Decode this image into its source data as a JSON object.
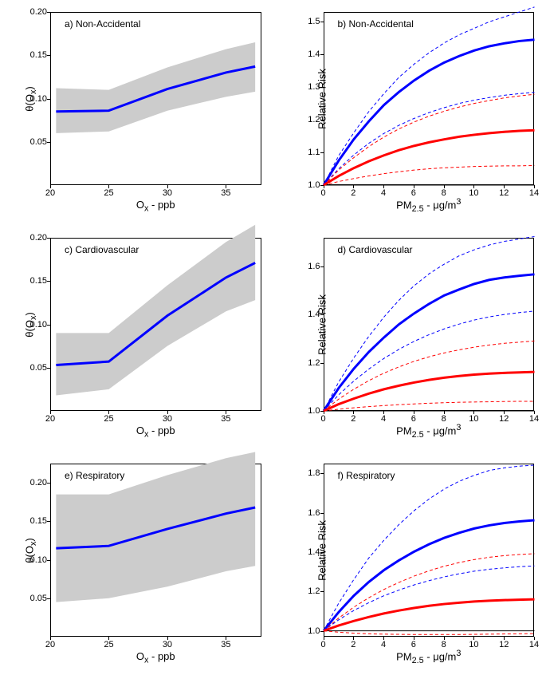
{
  "colors": {
    "band": "#cccccc",
    "blue": "#0000ff",
    "red": "#ff0000",
    "axis": "#000000",
    "refline": "#000000"
  },
  "panels": [
    {
      "id": "a",
      "label": "a) Non-Accidental",
      "type": "line-band",
      "x_axis": {
        "label": "Oₓ - ppb",
        "min": 20,
        "max": 38,
        "ticks": [
          20,
          25,
          30,
          35
        ]
      },
      "y_axis": {
        "label": "θ(Oₓ)",
        "min": 0,
        "max": 0.2,
        "ticks": [
          0.05,
          0.1,
          0.15,
          0.2
        ]
      },
      "band": {
        "x": [
          20.5,
          25,
          30,
          35,
          37.5
        ],
        "lo": [
          0.06,
          0.062,
          0.086,
          0.102,
          0.108
        ],
        "hi": [
          0.112,
          0.11,
          0.136,
          0.157,
          0.165
        ]
      },
      "line": {
        "x": [
          20.5,
          25,
          30,
          35,
          37.5
        ],
        "y": [
          0.085,
          0.086,
          0.111,
          0.13,
          0.137
        ],
        "color": "blue",
        "width": 3
      }
    },
    {
      "id": "b",
      "label": "b) Non-Accidental",
      "type": "rr",
      "x_axis": {
        "label": "PM₂.₅ - μg/m³",
        "min": 0,
        "max": 14,
        "ticks": [
          0,
          2,
          4,
          6,
          8,
          10,
          12,
          14
        ]
      },
      "y_axis": {
        "label": "Relative Risk",
        "min": 1.0,
        "max": 1.53,
        "ticks": [
          1.0,
          1.1,
          1.2,
          1.3,
          1.4,
          1.5
        ]
      },
      "ref": 1.0,
      "series": [
        {
          "x": [
            0,
            1,
            2,
            3,
            4,
            5,
            6,
            7,
            8,
            9,
            10,
            11,
            12,
            13,
            14
          ],
          "y": [
            1.0,
            1.09,
            1.16,
            1.225,
            1.28,
            1.33,
            1.37,
            1.405,
            1.435,
            1.46,
            1.48,
            1.5,
            1.515,
            1.53,
            1.545
          ],
          "color": "blue",
          "width": 1,
          "dash": "4,3"
        },
        {
          "x": [
            0,
            1,
            2,
            3,
            4,
            5,
            6,
            7,
            8,
            9,
            10,
            11,
            12,
            13,
            14
          ],
          "y": [
            1.0,
            1.075,
            1.14,
            1.195,
            1.245,
            1.285,
            1.32,
            1.35,
            1.375,
            1.395,
            1.412,
            1.425,
            1.434,
            1.441,
            1.445
          ],
          "color": "blue",
          "width": 3
        },
        {
          "x": [
            0,
            1,
            2,
            3,
            4,
            5,
            6,
            7,
            8,
            9,
            10,
            11,
            12,
            13,
            14
          ],
          "y": [
            1.0,
            1.05,
            1.092,
            1.128,
            1.158,
            1.183,
            1.204,
            1.222,
            1.237,
            1.25,
            1.26,
            1.268,
            1.275,
            1.28,
            1.284
          ],
          "color": "blue",
          "width": 1,
          "dash": "4,3"
        },
        {
          "x": [
            0,
            1,
            2,
            3,
            4,
            5,
            6,
            7,
            8,
            9,
            10,
            11,
            12,
            13,
            14
          ],
          "y": [
            1.0,
            1.046,
            1.084,
            1.118,
            1.147,
            1.172,
            1.193,
            1.211,
            1.226,
            1.239,
            1.25,
            1.259,
            1.267,
            1.273,
            1.278
          ],
          "color": "red",
          "width": 1,
          "dash": "4,3"
        },
        {
          "x": [
            0,
            1,
            2,
            3,
            4,
            5,
            6,
            7,
            8,
            9,
            10,
            11,
            12,
            13,
            14
          ],
          "y": [
            1.0,
            1.028,
            1.052,
            1.073,
            1.091,
            1.107,
            1.12,
            1.131,
            1.14,
            1.148,
            1.154,
            1.159,
            1.163,
            1.166,
            1.168
          ],
          "color": "red",
          "width": 3
        },
        {
          "x": [
            0,
            1,
            2,
            3,
            4,
            5,
            6,
            7,
            8,
            9,
            10,
            11,
            12,
            13,
            14
          ],
          "y": [
            1.0,
            1.011,
            1.02,
            1.028,
            1.035,
            1.041,
            1.046,
            1.05,
            1.053,
            1.055,
            1.057,
            1.058,
            1.059,
            1.059,
            1.06
          ],
          "color": "red",
          "width": 1,
          "dash": "4,3"
        }
      ]
    },
    {
      "id": "c",
      "label": "c) Cardiovascular",
      "type": "line-band",
      "x_axis": {
        "label": "Oₓ - ppb",
        "min": 20,
        "max": 38,
        "ticks": [
          20,
          25,
          30,
          35
        ]
      },
      "y_axis": {
        "label": "θ(Oₓ)",
        "min": 0,
        "max": 0.2,
        "ticks": [
          0.05,
          0.1,
          0.15,
          0.2
        ]
      },
      "band": {
        "x": [
          20.5,
          25,
          30,
          35,
          37.5
        ],
        "lo": [
          0.018,
          0.025,
          0.075,
          0.115,
          0.128
        ],
        "hi": [
          0.09,
          0.09,
          0.145,
          0.195,
          0.215
        ]
      },
      "line": {
        "x": [
          20.5,
          25,
          30,
          35,
          37.5
        ],
        "y": [
          0.053,
          0.057,
          0.11,
          0.154,
          0.171
        ],
        "color": "blue",
        "width": 3
      }
    },
    {
      "id": "d",
      "label": "d) Cardiovascular",
      "type": "rr",
      "x_axis": {
        "label": "PM₂.₅ - μg/m³",
        "min": 0,
        "max": 14,
        "ticks": [
          0,
          2,
          4,
          6,
          8,
          10,
          12,
          14
        ]
      },
      "y_axis": {
        "label": "Relative Risk",
        "min": 1.0,
        "max": 1.72,
        "ticks": [
          1.0,
          1.2,
          1.4,
          1.6
        ]
      },
      "ref": 1.0,
      "series": [
        {
          "x": [
            0,
            1,
            2,
            3,
            4,
            5,
            6,
            7,
            8,
            9,
            10,
            11,
            12,
            13,
            14
          ],
          "y": [
            1.0,
            1.12,
            1.22,
            1.31,
            1.39,
            1.46,
            1.52,
            1.57,
            1.61,
            1.645,
            1.67,
            1.69,
            1.705,
            1.715,
            1.725
          ],
          "color": "blue",
          "width": 1,
          "dash": "4,3"
        },
        {
          "x": [
            0,
            1,
            2,
            3,
            4,
            5,
            6,
            7,
            8,
            9,
            10,
            11,
            12,
            13,
            14
          ],
          "y": [
            1.0,
            1.095,
            1.175,
            1.245,
            1.305,
            1.36,
            1.405,
            1.445,
            1.48,
            1.505,
            1.528,
            1.545,
            1.555,
            1.562,
            1.568
          ],
          "color": "blue",
          "width": 3
        },
        {
          "x": [
            0,
            1,
            2,
            3,
            4,
            5,
            6,
            7,
            8,
            9,
            10,
            11,
            12,
            13,
            14
          ],
          "y": [
            1.0,
            1.067,
            1.124,
            1.174,
            1.218,
            1.256,
            1.289,
            1.317,
            1.341,
            1.361,
            1.378,
            1.391,
            1.401,
            1.409,
            1.415
          ],
          "color": "blue",
          "width": 1,
          "dash": "4,3"
        },
        {
          "x": [
            0,
            1,
            2,
            3,
            4,
            5,
            6,
            7,
            8,
            9,
            10,
            11,
            12,
            13,
            14
          ],
          "y": [
            1.0,
            1.049,
            1.09,
            1.126,
            1.157,
            1.183,
            1.206,
            1.225,
            1.241,
            1.254,
            1.265,
            1.274,
            1.281,
            1.286,
            1.291
          ],
          "color": "red",
          "width": 1,
          "dash": "4,3"
        },
        {
          "x": [
            0,
            1,
            2,
            3,
            4,
            5,
            6,
            7,
            8,
            9,
            10,
            11,
            12,
            13,
            14
          ],
          "y": [
            1.0,
            1.028,
            1.051,
            1.072,
            1.09,
            1.105,
            1.118,
            1.129,
            1.138,
            1.145,
            1.151,
            1.155,
            1.158,
            1.16,
            1.162
          ],
          "color": "red",
          "width": 3
        },
        {
          "x": [
            0,
            1,
            2,
            3,
            4,
            5,
            6,
            7,
            8,
            9,
            10,
            11,
            12,
            13,
            14
          ],
          "y": [
            1.0,
            1.007,
            1.013,
            1.018,
            1.022,
            1.026,
            1.029,
            1.032,
            1.034,
            1.036,
            1.037,
            1.038,
            1.039,
            1.04,
            1.04
          ],
          "color": "red",
          "width": 1,
          "dash": "4,3"
        }
      ]
    },
    {
      "id": "e",
      "label": "e) Respiratory",
      "type": "line-band",
      "x_axis": {
        "label": "Oₓ - ppb",
        "min": 20,
        "max": 38,
        "ticks": [
          20,
          25,
          30,
          35
        ]
      },
      "y_axis": {
        "label": "θ(Oₓ)",
        "min": 0,
        "max": 0.225,
        "ticks": [
          0.05,
          0.1,
          0.15,
          0.2
        ]
      },
      "band": {
        "x": [
          20.5,
          25,
          30,
          35,
          37.5
        ],
        "lo": [
          0.045,
          0.05,
          0.065,
          0.085,
          0.092
        ],
        "hi": [
          0.185,
          0.185,
          0.21,
          0.232,
          0.24
        ]
      },
      "line": {
        "x": [
          20.5,
          25,
          30,
          35,
          37.5
        ],
        "y": [
          0.115,
          0.118,
          0.14,
          0.16,
          0.168
        ],
        "color": "blue",
        "width": 3
      }
    },
    {
      "id": "f",
      "label": "f) Respiratory",
      "type": "rr",
      "x_axis": {
        "label": "PM₂.₅ - μg/m³",
        "min": 0,
        "max": 14,
        "ticks": [
          0,
          2,
          4,
          6,
          8,
          10,
          12,
          14
        ]
      },
      "y_axis": {
        "label": "Relative Risk",
        "min": 0.97,
        "max": 1.85,
        "ticks": [
          1.0,
          1.2,
          1.4,
          1.6,
          1.8
        ]
      },
      "ref": 1.0,
      "series": [
        {
          "x": [
            0,
            1,
            2,
            3,
            4,
            5,
            6,
            7,
            8,
            9,
            10,
            11,
            12,
            13,
            14
          ],
          "y": [
            1.0,
            1.14,
            1.26,
            1.37,
            1.46,
            1.54,
            1.61,
            1.67,
            1.72,
            1.76,
            1.79,
            1.815,
            1.828,
            1.837,
            1.842
          ],
          "color": "blue",
          "width": 1,
          "dash": "4,3"
        },
        {
          "x": [
            0,
            1,
            2,
            3,
            4,
            5,
            6,
            7,
            8,
            9,
            10,
            11,
            12,
            13,
            14
          ],
          "y": [
            1.0,
            1.095,
            1.178,
            1.248,
            1.308,
            1.358,
            1.402,
            1.44,
            1.472,
            1.498,
            1.52,
            1.536,
            1.548,
            1.556,
            1.562
          ],
          "color": "blue",
          "width": 3
        },
        {
          "x": [
            0,
            1,
            2,
            3,
            4,
            5,
            6,
            7,
            8,
            9,
            10,
            11,
            12,
            13,
            14
          ],
          "y": [
            1.0,
            1.056,
            1.103,
            1.143,
            1.178,
            1.207,
            1.233,
            1.255,
            1.274,
            1.29,
            1.303,
            1.313,
            1.32,
            1.326,
            1.33
          ],
          "color": "blue",
          "width": 1,
          "dash": "4,3"
        },
        {
          "x": [
            0,
            1,
            2,
            3,
            4,
            5,
            6,
            7,
            8,
            9,
            10,
            11,
            12,
            13,
            14
          ],
          "y": [
            1.0,
            1.065,
            1.12,
            1.168,
            1.21,
            1.246,
            1.278,
            1.305,
            1.328,
            1.347,
            1.362,
            1.374,
            1.382,
            1.388,
            1.392
          ],
          "color": "red",
          "width": 1,
          "dash": "4,3"
        },
        {
          "x": [
            0,
            1,
            2,
            3,
            4,
            5,
            6,
            7,
            8,
            9,
            10,
            11,
            12,
            13,
            14
          ],
          "y": [
            1.0,
            1.027,
            1.05,
            1.07,
            1.088,
            1.103,
            1.116,
            1.127,
            1.136,
            1.143,
            1.149,
            1.153,
            1.156,
            1.158,
            1.16
          ],
          "color": "red",
          "width": 3
        },
        {
          "x": [
            0,
            1,
            2,
            3,
            4,
            5,
            6,
            7,
            8,
            9,
            10,
            11,
            12,
            13,
            14
          ],
          "y": [
            1.0,
            0.993,
            0.988,
            0.985,
            0.983,
            0.982,
            0.981,
            0.981,
            0.981,
            0.981,
            0.982,
            0.983,
            0.984,
            0.985,
            0.986
          ],
          "color": "red",
          "width": 1,
          "dash": "4,3"
        }
      ]
    }
  ]
}
